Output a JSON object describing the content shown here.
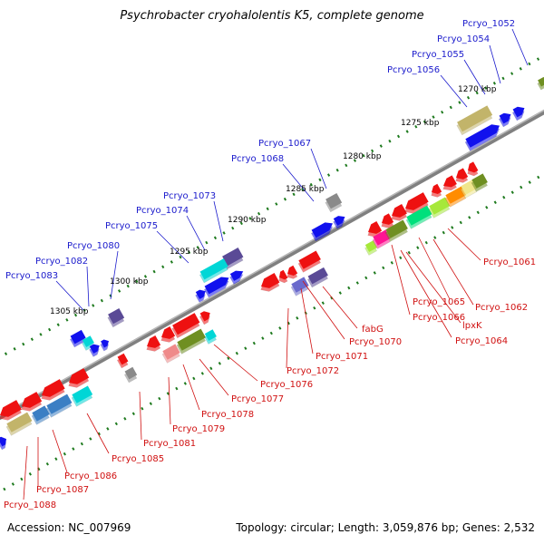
{
  "title": "Psychrobacter cryohalolentis K5, complete genome",
  "accession": "Accession: NC_007969",
  "summary": "Topology: circular; Length: 3,059,876 bp; Genes: 2,532",
  "colors": {
    "backbone": "#808080",
    "tick": "#1e7a1e",
    "upper_label": "#1a1acc",
    "lower_label": "#d01010"
  },
  "scale_labels": [
    "1270 kbp",
    "1275 kbp",
    "1280 kbp",
    "1285 kbp",
    "1290 kbp",
    "1295 kbp",
    "1300 kbp",
    "1305 kbp"
  ],
  "upper_genes": [
    "Pcryo_1052",
    "Pcryo_1054",
    "Pcryo_1055",
    "Pcryo_1056",
    "Pcryo_1067",
    "Pcryo_1068",
    "Pcryo_1073",
    "Pcryo_1074",
    "Pcryo_1075",
    "Pcryo_1080",
    "Pcryo_1082",
    "Pcryo_1083"
  ],
  "lower_genes": [
    "Pcryo_1061",
    "Pcryo_1062",
    "Pcryo_1065",
    "Pcryo_1066",
    "lpxK",
    "Pcryo_1064",
    "fabG",
    "Pcryo_1070",
    "Pcryo_1071",
    "Pcryo_1072",
    "Pcryo_1076",
    "Pcryo_1077",
    "Pcryo_1078",
    "Pcryo_1079",
    "Pcryo_1081",
    "Pcryo_1085",
    "Pcryo_1086",
    "Pcryo_1087",
    "Pcryo_1088"
  ],
  "feature_colors": [
    "#ee1111",
    "#1111ee",
    "#00d6d6",
    "#5a4a96",
    "#8a8a8a",
    "#c2b46a",
    "#6f8f22",
    "#3b7fc4",
    "#00e07c",
    "#ff1493",
    "#ff8c00",
    "#f0e68c",
    "#a6e83a",
    "#ef8a8a",
    "#6a6acc",
    "#3a7f3a"
  ]
}
